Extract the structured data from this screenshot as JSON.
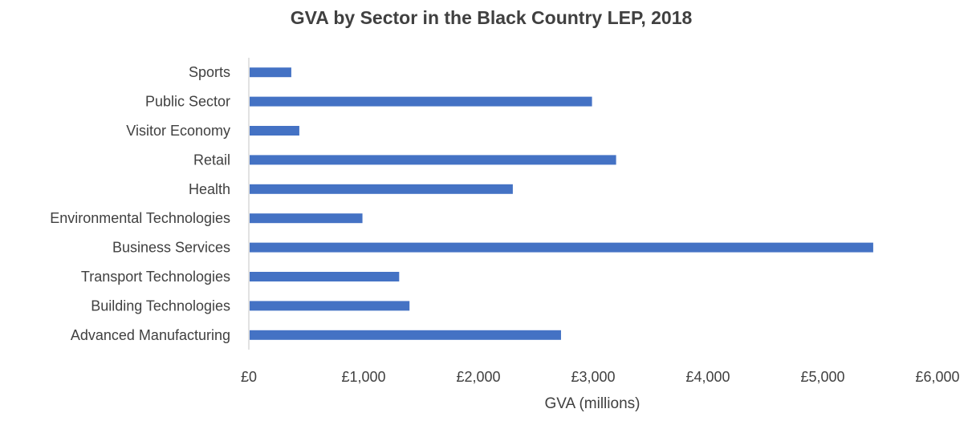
{
  "chart_data": {
    "type": "bar",
    "orientation": "horizontal",
    "title": "GVA by Sector in the Black Country LEP, 2018",
    "xlabel": "GVA (millions)",
    "ylabel": "",
    "categories": [
      "Advanced Manufacturing",
      "Building Technologies",
      "Transport Technologies",
      "Business Services",
      "Environmental Technologies",
      "Health",
      "Retail",
      "Visitor Economy",
      "Public Sector",
      "Sports"
    ],
    "values": [
      2720,
      1400,
      1310,
      5440,
      990,
      2300,
      3200,
      440,
      2990,
      370
    ],
    "xlim": [
      0,
      6000
    ],
    "ticks": [
      0,
      1000,
      2000,
      3000,
      4000,
      5000,
      6000
    ],
    "tick_labels": [
      "£0",
      "£1,000",
      "£2,000",
      "£3,000",
      "£4,000",
      "£5,000",
      "£6,000"
    ],
    "bar_color": "#4472C4",
    "axis_color": "#D9D9D9",
    "grid": false,
    "legend": "none"
  }
}
